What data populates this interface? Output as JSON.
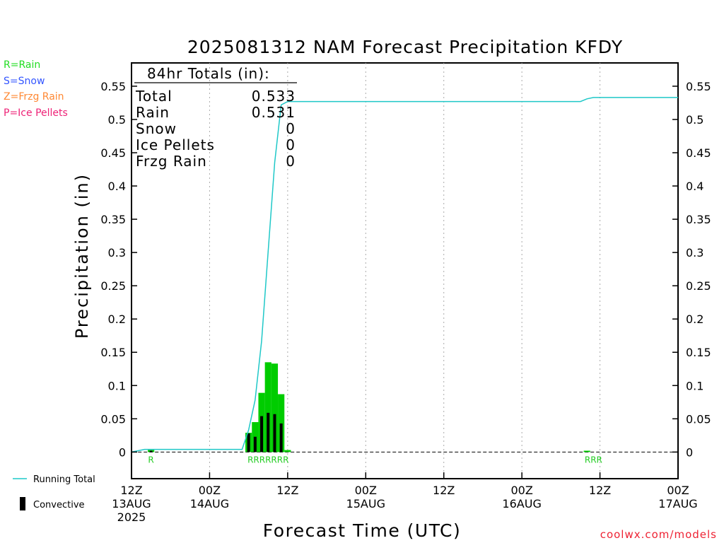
{
  "chart_data": {
    "type": "bar",
    "title": "2025081312 NAM Forecast Precipitation KFDY",
    "xlabel": "Forecast Time (UTC)",
    "ylabel": "Precipitation (in)",
    "ylim": [
      -0.04,
      0.585
    ],
    "yticks": [
      0,
      0.05,
      0.1,
      0.15,
      0.2,
      0.25,
      0.3,
      0.35,
      0.4,
      0.45,
      0.5,
      0.55
    ],
    "ytick_labels": [
      "0",
      "0.05",
      "0.1",
      "0.15",
      "0.2",
      "0.25",
      "0.3",
      "0.35",
      "0.4",
      "0.45",
      "0.5",
      "0.55"
    ],
    "xlim_hours": [
      0,
      84
    ],
    "xticks": [
      {
        "hour": 0,
        "line1": "12Z",
        "line2": "13AUG",
        "line3": "2025"
      },
      {
        "hour": 12,
        "line1": "00Z",
        "line2": "14AUG",
        "line3": ""
      },
      {
        "hour": 24,
        "line1": "12Z",
        "line2": "",
        "line3": ""
      },
      {
        "hour": 36,
        "line1": "00Z",
        "line2": "15AUG",
        "line3": ""
      },
      {
        "hour": 48,
        "line1": "12Z",
        "line2": "",
        "line3": ""
      },
      {
        "hour": 60,
        "line1": "00Z",
        "line2": "16AUG",
        "line3": ""
      },
      {
        "hour": 72,
        "line1": "12Z",
        "line2": "",
        "line3": ""
      },
      {
        "hour": 84,
        "line1": "00Z",
        "line2": "17AUG",
        "line3": ""
      }
    ],
    "series": [
      {
        "name": "Rain",
        "color": "#00cc00",
        "hours": [
          3,
          18,
          19,
          20,
          21,
          22,
          23,
          24,
          70
        ],
        "values": [
          0.003,
          0.029,
          0.045,
          0.089,
          0.135,
          0.133,
          0.087,
          0.003,
          0.002
        ]
      },
      {
        "name": "Convective",
        "color": "#000000",
        "hours": [
          3,
          18,
          19,
          20,
          21,
          22,
          23
        ],
        "values": [
          0.002,
          0.028,
          0.023,
          0.054,
          0.059,
          0.057,
          0.043
        ]
      },
      {
        "name": "Running Total",
        "color": "#1fc8c8",
        "hours": [
          0,
          2,
          17,
          18,
          19,
          20,
          21,
          22,
          23,
          24,
          69,
          70,
          71,
          84
        ],
        "values": [
          0,
          0.004,
          0.004,
          0.033,
          0.078,
          0.167,
          0.302,
          0.435,
          0.522,
          0.527,
          0.527,
          0.531,
          0.533,
          0.533
        ]
      }
    ],
    "ptype_labels": [
      {
        "text": "R",
        "hour": 3
      },
      {
        "text": "RRRRRRR",
        "hour": 21
      },
      {
        "text": "RRR",
        "hour": 71
      }
    ],
    "grid": true
  },
  "totals": {
    "header": "84hr Totals (in):",
    "rows": [
      {
        "label": "Total",
        "value": "0.533"
      },
      {
        "label": "Rain",
        "value": "0.531"
      },
      {
        "label": "Snow",
        "value": "0"
      },
      {
        "label": "Ice Pellets",
        "value": "0"
      },
      {
        "label": "Frzg Rain",
        "value": "0"
      }
    ]
  },
  "legend_types": [
    {
      "text": "R=Rain",
      "color": "#22dd22"
    },
    {
      "text": "S=Snow",
      "color": "#3355ff"
    },
    {
      "text": "Z=Frzg Rain",
      "color": "#ff8833"
    },
    {
      "text": "P=Ice Pellets",
      "color": "#ee2277"
    }
  ],
  "legend_bottom": {
    "running_total": "Running Total",
    "convective": "Convective"
  },
  "credit": {
    "text": "coolwx.com/models",
    "color": "#ee2233"
  }
}
